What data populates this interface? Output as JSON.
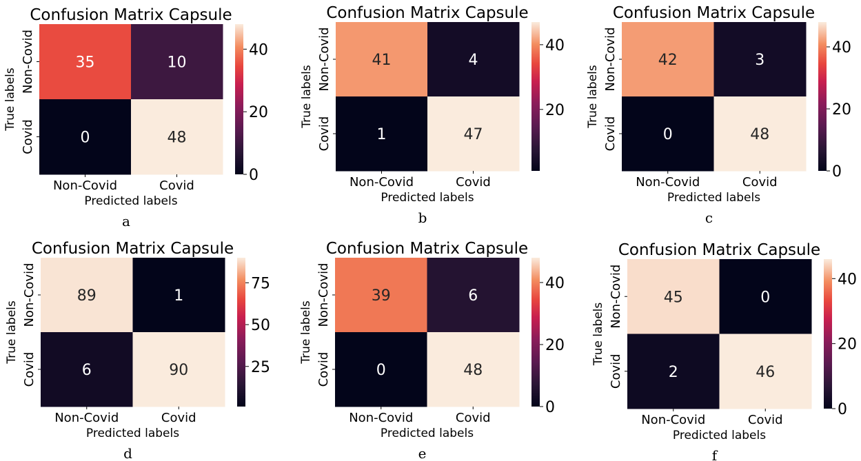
{
  "chart_data": [
    {
      "type": "heatmap",
      "title": "Confusion Matrix Capsule",
      "xlabel": "Predicted labels",
      "ylabel": "True labels",
      "x_categories": [
        "Non-Covid",
        "Covid"
      ],
      "y_categories": [
        "Non-Covid",
        "Covid"
      ],
      "values": [
        [
          35,
          10
        ],
        [
          0,
          48
        ]
      ],
      "colorbar_ticks": [
        "0",
        "20",
        "40"
      ],
      "colorbar_range": [
        0,
        48
      ],
      "panel_label": "a"
    },
    {
      "type": "heatmap",
      "title": "Confusion Matrix Capsule",
      "xlabel": "Predicted labels",
      "ylabel": "True labels",
      "x_categories": [
        "Non-Covid",
        "Covid"
      ],
      "y_categories": [
        "Non-Covid",
        "Covid"
      ],
      "values": [
        [
          41,
          4
        ],
        [
          1,
          47
        ]
      ],
      "colorbar_ticks": [
        "20",
        "40"
      ],
      "colorbar_range": [
        1,
        47
      ],
      "panel_label": "b"
    },
    {
      "type": "heatmap",
      "title": "Confusion Matrix Capsule",
      "xlabel": "Predicted labels",
      "ylabel": "True labels",
      "x_categories": [
        "Non-Covid",
        "Covid"
      ],
      "y_categories": [
        "Non-Covid",
        "Covid"
      ],
      "values": [
        [
          42,
          3
        ],
        [
          0,
          48
        ]
      ],
      "colorbar_ticks": [
        "0",
        "20",
        "40"
      ],
      "colorbar_range": [
        0,
        48
      ],
      "panel_label": "c"
    },
    {
      "type": "heatmap",
      "title": "Confusion Matrix Capsule",
      "xlabel": "Predicted labels",
      "ylabel": "True labels",
      "x_categories": [
        "Non-Covid",
        "Covid"
      ],
      "y_categories": [
        "Non-Covid",
        "Covid"
      ],
      "values": [
        [
          89,
          1
        ],
        [
          6,
          90
        ]
      ],
      "colorbar_ticks": [
        "25",
        "50",
        "75"
      ],
      "colorbar_range": [
        1,
        90
      ],
      "panel_label": "d"
    },
    {
      "type": "heatmap",
      "title": "Confusion Matrix Capsule",
      "xlabel": "Predicted labels",
      "ylabel": "True labels",
      "x_categories": [
        "Non-Covid",
        "Covid"
      ],
      "y_categories": [
        "Non-Covid",
        "Covid"
      ],
      "values": [
        [
          39,
          6
        ],
        [
          0,
          48
        ]
      ],
      "colorbar_ticks": [
        "0",
        "20",
        "40"
      ],
      "colorbar_range": [
        0,
        48
      ],
      "panel_label": "e"
    },
    {
      "type": "heatmap",
      "title": "Confusion Matrix Capsule",
      "xlabel": "Predicted labels",
      "ylabel": "True labels",
      "x_categories": [
        "Non-Covid",
        "Covid"
      ],
      "y_categories": [
        "Non-Covid",
        "Covid"
      ],
      "values": [
        [
          45,
          0
        ],
        [
          2,
          46
        ]
      ],
      "colorbar_ticks": [
        "0",
        "20",
        "40"
      ],
      "colorbar_range": [
        0,
        46
      ],
      "panel_label": "f"
    }
  ]
}
